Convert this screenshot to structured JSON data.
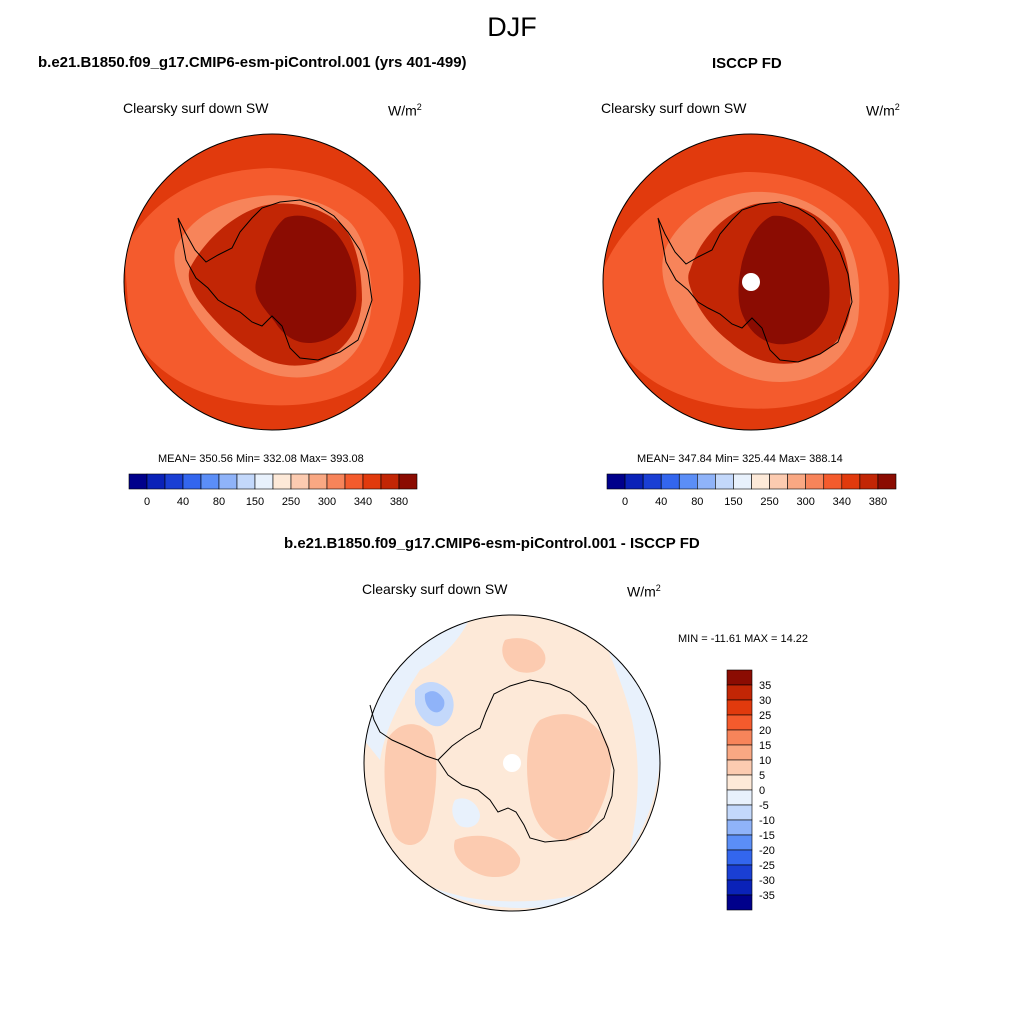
{
  "title": "DJF",
  "panels": [
    {
      "heading": "b.e21.B1850.f09_g17.CMIP6-esm-piControl.001 (yrs 401-499)",
      "variable": "Clearsky surf down SW",
      "units": "W/m",
      "units_exp": "2",
      "stats": "MEAN= 350.56  Min= 332.08  Max= 393.08",
      "has_pole_hole": false
    },
    {
      "heading": "ISCCP FD",
      "variable": "Clearsky surf down SW",
      "units": "W/m",
      "units_exp": "2",
      "stats": "MEAN= 347.84  Min= 325.44  Max= 388.14",
      "has_pole_hole": true
    }
  ],
  "diff_panel": {
    "heading": "b.e21.B1850.f09_g17.CMIP6-esm-piControl.001 - ISCCP FD",
    "variable": "Clearsky surf down SW",
    "units": "W/m",
    "units_exp": "2",
    "stats": "MIN = -11.61 MAX =  14.22"
  },
  "colorbar_abs": {
    "colors": [
      "#00008b",
      "#0a22b8",
      "#1a3fd4",
      "#3366ee",
      "#5b8ef7",
      "#8fb3f9",
      "#c3d8fb",
      "#e8f1fc",
      "#fde9d8",
      "#fccbb0",
      "#f9a883",
      "#f7845a",
      "#f45b2d",
      "#e13a0d",
      "#c22605",
      "#8b0c02"
    ],
    "tick_labels": [
      "0",
      "40",
      "80",
      "150",
      "250",
      "300",
      "340",
      "380"
    ]
  },
  "colorbar_diff": {
    "colors": [
      "#8b0c02",
      "#c22605",
      "#e13a0d",
      "#f45b2d",
      "#f7845a",
      "#f9a883",
      "#fccbb0",
      "#fde9d8",
      "#e8f1fc",
      "#c3d8fb",
      "#8fb3f9",
      "#5b8ef7",
      "#3366ee",
      "#1a3fd4",
      "#0a22b8",
      "#00008b"
    ],
    "tick_labels": [
      "35",
      "30",
      "25",
      "20",
      "15",
      "10",
      "5",
      "0",
      "-5",
      "-10",
      "-15",
      "-20",
      "-25",
      "-30",
      "-35"
    ]
  },
  "field_colors": {
    "ocean_outer": "#e13a0d",
    "ocean_inner": "#f45b2d",
    "coast_band": "#f7845a",
    "ice_mid": "#c22605",
    "ice_high": "#8b0c02",
    "diff_base": "#fde9d8",
    "diff_warm": "#fccbb0",
    "diff_cool": "#e8f1fc",
    "diff_blue": "#c3d8fb",
    "diff_blue2": "#8fb3f9"
  }
}
